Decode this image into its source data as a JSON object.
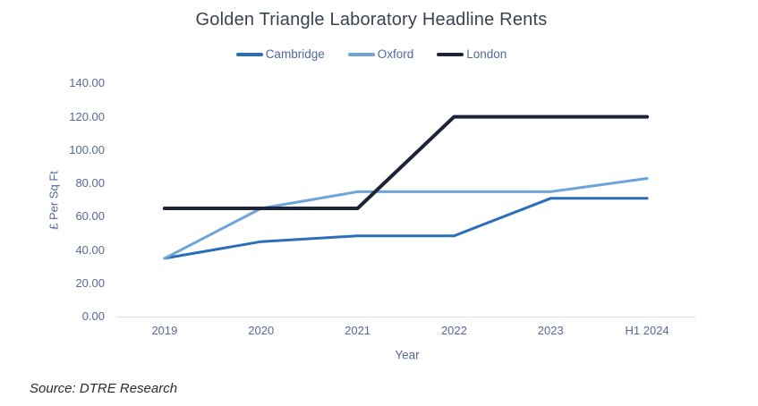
{
  "header": {
    "title": "Golden Triangle Laboratory Headline Rents"
  },
  "footer": {
    "source": "Source: DTRE Research"
  },
  "colors": {
    "page_bg": "#ffffff",
    "title_text": "#3a4252",
    "axis_text": "#56689a",
    "legend_text": "#4e689e",
    "axis_line": "#dcdfe8",
    "cambridge": "#2a6db8",
    "oxford": "#6ea4d8",
    "london": "#1b2438"
  },
  "chart_data": {
    "type": "line",
    "title": "Golden Triangle Laboratory Headline Rents",
    "xlabel": "Year",
    "ylabel": "£ Per Sq Ft",
    "categories": [
      "2019",
      "2020",
      "2021",
      "2022",
      "2023",
      "H1 2024"
    ],
    "series": [
      {
        "name": "Cambridge",
        "color": "#2a6db8",
        "values": [
          35,
          45,
          48.5,
          48.5,
          71,
          71
        ]
      },
      {
        "name": "Oxford",
        "color": "#6ea4d8",
        "values": [
          35,
          65,
          75,
          75,
          75,
          83
        ]
      },
      {
        "name": "London",
        "color": "#1b2438",
        "values": [
          65,
          65,
          65,
          120,
          120,
          120
        ]
      }
    ],
    "ylim": [
      0,
      140
    ],
    "ytick_step": 20,
    "ytick_labels": [
      "0.00",
      "20.00",
      "40.00",
      "60.00",
      "80.00",
      "100.00",
      "120.00",
      "140.00"
    ],
    "grid": false,
    "legend_position": "top-center"
  }
}
